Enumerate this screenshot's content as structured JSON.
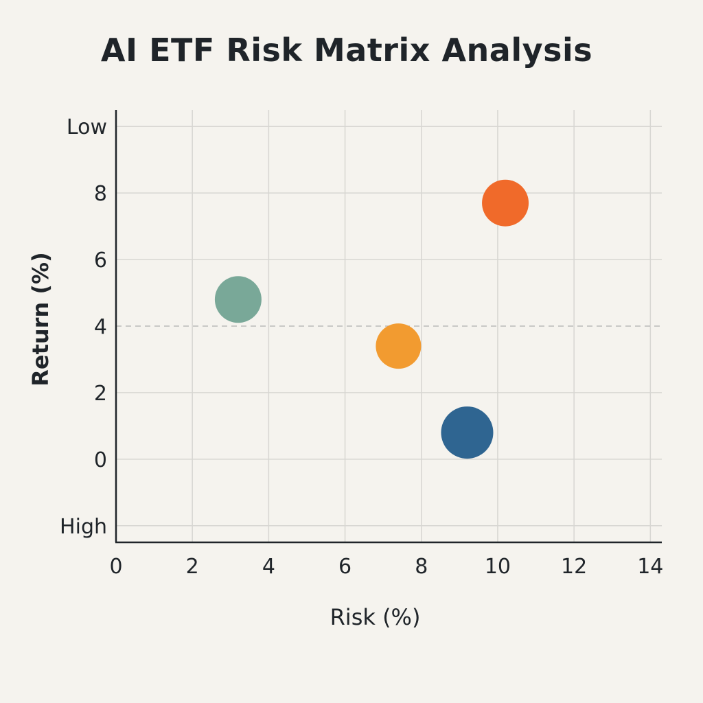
{
  "chart_data": {
    "type": "scatter",
    "title": "AI ETF Risk Matrix Analysis",
    "xlabel": "Risk (%)",
    "ylabel": "Return (%)",
    "xlim": [
      0,
      14.3
    ],
    "ylim": [
      -2.5,
      10.5
    ],
    "x_ticks": [
      0,
      2,
      4,
      6,
      8,
      10,
      12,
      14
    ],
    "y_ticks": [
      {
        "value": 10,
        "label": "Low"
      },
      {
        "value": 8,
        "label": "8"
      },
      {
        "value": 6,
        "label": "6"
      },
      {
        "value": 4,
        "label": "4"
      },
      {
        "value": 2,
        "label": "2"
      },
      {
        "value": 0,
        "label": "0"
      },
      {
        "value": -2,
        "label": "High"
      }
    ],
    "reference_line": {
      "y": 4,
      "style": "dashed",
      "color": "#b9b9b9"
    },
    "grid": true,
    "points": [
      {
        "x": 3.2,
        "y": 4.8,
        "size": 34,
        "color": "#79a898"
      },
      {
        "x": 7.4,
        "y": 3.4,
        "size": 33,
        "color": "#f29b30"
      },
      {
        "x": 10.2,
        "y": 7.7,
        "size": 34,
        "color": "#f06a2a"
      },
      {
        "x": 9.2,
        "y": 0.8,
        "size": 38,
        "color": "#2f6591"
      }
    ]
  }
}
